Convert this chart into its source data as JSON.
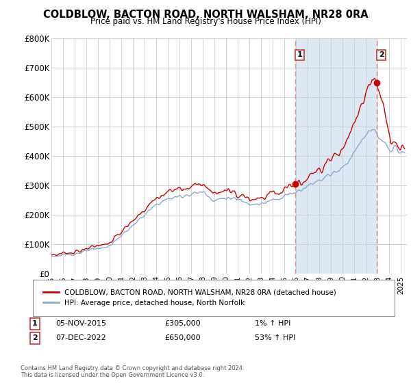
{
  "title": "COLDBLOW, BACTON ROAD, NORTH WALSHAM, NR28 0RA",
  "subtitle": "Price paid vs. HM Land Registry's House Price Index (HPI)",
  "ylim": [
    0,
    800000
  ],
  "yticks": [
    0,
    100000,
    200000,
    300000,
    400000,
    500000,
    600000,
    700000,
    800000
  ],
  "ytick_labels": [
    "£0",
    "£100K",
    "£200K",
    "£300K",
    "£400K",
    "£500K",
    "£600K",
    "£700K",
    "£800K"
  ],
  "xlim_start": 1995,
  "xlim_end": 2025.5,
  "bg_color": "#ffffff",
  "grid_color": "#cccccc",
  "fill_color": "#dce9f5",
  "sale1_year": 2015.92,
  "sale1_price": 305000,
  "sale2_year": 2022.92,
  "sale2_price": 650000,
  "legend_line1": "COLDBLOW, BACTON ROAD, NORTH WALSHAM, NR28 0RA (detached house)",
  "legend_line2": "HPI: Average price, detached house, North Norfolk",
  "annotation1_date": "05-NOV-2015",
  "annotation1_price": "£305,000",
  "annotation1_hpi": "1% ↑ HPI",
  "annotation2_date": "07-DEC-2022",
  "annotation2_price": "£650,000",
  "annotation2_hpi": "53% ↑ HPI",
  "footer": "Contains HM Land Registry data © Crown copyright and database right 2024.\nThis data is licensed under the Open Government Licence v3.0.",
  "line_color_red": "#cc0000",
  "line_color_blue": "#88aacc",
  "vline_color": "#ee8888"
}
